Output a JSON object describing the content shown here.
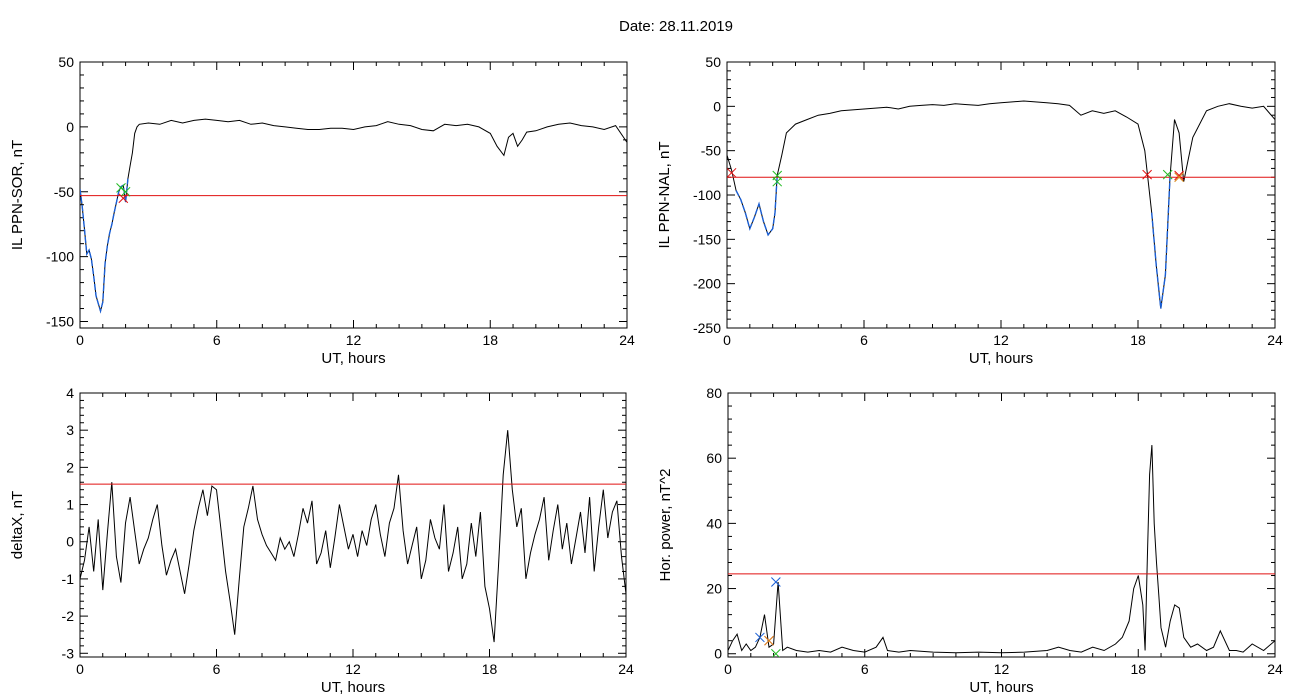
{
  "header": {
    "date_label": "Date:  28.11.2019"
  },
  "colors": {
    "trace": "#000000",
    "threshold": "#e01010",
    "storm": "#1a5fd6",
    "mark_red": "#e01010",
    "mark_green": "#22bb22",
    "mark_blue": "#1a5fd6",
    "mark_orange": "#d98a1a"
  },
  "chart_data": [
    {
      "type": "line",
      "ylabel": "IL PPN-SOR, nT",
      "xlabel": "UT, hours",
      "xlim": [
        0,
        24
      ],
      "ylim": [
        -155,
        50
      ],
      "xticks": [
        0,
        6,
        12,
        18,
        24
      ],
      "yticks": [
        -150,
        -100,
        -50,
        0,
        50
      ],
      "threshold": -53,
      "x": [
        0,
        0.1,
        0.2,
        0.3,
        0.4,
        0.5,
        0.6,
        0.7,
        0.8,
        0.9,
        1.0,
        1.1,
        1.2,
        1.3,
        1.4,
        1.5,
        1.6,
        1.7,
        1.8,
        1.9,
        2.0,
        2.1,
        2.2,
        2.3,
        2.4,
        2.5,
        2.6,
        3,
        3.5,
        4,
        4.5,
        5,
        5.5,
        6,
        6.5,
        7,
        7.5,
        8,
        8.5,
        9,
        9.5,
        10,
        10.5,
        11,
        11.5,
        12,
        12.5,
        13,
        13.5,
        14,
        14.5,
        15,
        15.5,
        16,
        16.5,
        17,
        17.5,
        18,
        18.3,
        18.6,
        18.8,
        19.0,
        19.2,
        19.4,
        19.6,
        20,
        20.5,
        21,
        21.5,
        22,
        22.5,
        23,
        23.5,
        24
      ],
      "y": [
        -48,
        -62,
        -80,
        -98,
        -95,
        -102,
        -115,
        -130,
        -136,
        -142,
        -135,
        -105,
        -92,
        -82,
        -75,
        -66,
        -58,
        -50,
        -46,
        -45,
        -58,
        -40,
        -30,
        -20,
        -5,
        0,
        2,
        3,
        2,
        5,
        3,
        5,
        6,
        5,
        4,
        5,
        2,
        3,
        1,
        0,
        -1,
        -2,
        -2,
        -1,
        -1,
        -2,
        0,
        1,
        4,
        2,
        1,
        -2,
        -3,
        2,
        1,
        2,
        0,
        -5,
        -15,
        -22,
        -8,
        -5,
        -15,
        -10,
        -4,
        -3,
        0,
        2,
        3,
        1,
        0,
        -2,
        1,
        -12
      ],
      "storm_range": [
        0,
        2.1
      ],
      "markers": [
        {
          "x": 1.8,
          "y": -47,
          "color": "mark_green"
        },
        {
          "x": 2.0,
          "y": -50,
          "color": "mark_green"
        },
        {
          "x": 1.9,
          "y": -55,
          "color": "mark_red"
        }
      ]
    },
    {
      "type": "line",
      "ylabel": "IL PPN-NAL, nT",
      "xlabel": "UT, hours",
      "xlim": [
        0,
        24
      ],
      "ylim": [
        -250,
        50
      ],
      "xticks": [
        0,
        6,
        12,
        18,
        24
      ],
      "yticks": [
        -250,
        -200,
        -150,
        -100,
        -50,
        0,
        50
      ],
      "threshold": -80,
      "x": [
        0,
        0.2,
        0.4,
        0.6,
        0.8,
        1.0,
        1.2,
        1.4,
        1.6,
        1.8,
        2.0,
        2.1,
        2.2,
        2.4,
        2.6,
        3,
        3.5,
        4,
        4.5,
        5,
        5.5,
        6,
        6.5,
        7,
        7.5,
        8,
        8.5,
        9,
        9.5,
        10,
        10.5,
        11,
        11.5,
        12,
        12.5,
        13,
        13.5,
        14,
        14.5,
        15,
        15.5,
        16,
        16.5,
        17,
        17.5,
        18,
        18.3,
        18.6,
        18.8,
        19.0,
        19.2,
        19.4,
        19.6,
        19.8,
        20.0,
        20.2,
        20.4,
        20.6,
        21,
        21.5,
        22,
        22.5,
        23,
        23.5,
        24
      ],
      "y": [
        -55,
        -72,
        -95,
        -105,
        -120,
        -138,
        -125,
        -110,
        -130,
        -145,
        -138,
        -120,
        -78,
        -55,
        -30,
        -20,
        -15,
        -10,
        -8,
        -5,
        -4,
        -3,
        -2,
        -1,
        -3,
        0,
        1,
        2,
        1,
        3,
        2,
        1,
        3,
        4,
        5,
        6,
        5,
        4,
        3,
        1,
        -10,
        -5,
        -8,
        -5,
        -12,
        -20,
        -50,
        -120,
        -180,
        -228,
        -190,
        -80,
        -15,
        -30,
        -85,
        -60,
        -35,
        -25,
        -5,
        0,
        3,
        0,
        -2,
        0,
        -15
      ],
      "storm_range": [
        0.4,
        2.2
      ],
      "storm_range_2": [
        18.6,
        19.4
      ],
      "markers": [
        {
          "x": 0.2,
          "y": -75,
          "color": "mark_red"
        },
        {
          "x": 2.2,
          "y": -78,
          "color": "mark_green"
        },
        {
          "x": 2.2,
          "y": -85,
          "color": "mark_green"
        },
        {
          "x": 18.4,
          "y": -77,
          "color": "mark_red"
        },
        {
          "x": 19.3,
          "y": -77,
          "color": "mark_green"
        },
        {
          "x": 19.8,
          "y": -78,
          "color": "mark_red"
        },
        {
          "x": 19.8,
          "y": -80,
          "color": "mark_orange"
        }
      ]
    },
    {
      "type": "line",
      "ylabel": "deltaX, nT",
      "xlabel": "UT, hours",
      "xlim": [
        0,
        24
      ],
      "ylim": [
        -3.1,
        4
      ],
      "xticks": [
        0,
        6,
        12,
        18,
        24
      ],
      "yticks": [
        -3,
        -2,
        -1,
        0,
        1,
        2,
        3,
        4
      ],
      "threshold": 1.55,
      "x": [
        0,
        0.2,
        0.4,
        0.6,
        0.8,
        1.0,
        1.2,
        1.4,
        1.6,
        1.8,
        2.0,
        2.2,
        2.4,
        2.6,
        2.8,
        3.0,
        3.2,
        3.4,
        3.6,
        3.8,
        4.0,
        4.2,
        4.4,
        4.6,
        4.8,
        5.0,
        5.2,
        5.4,
        5.6,
        5.8,
        6.0,
        6.2,
        6.4,
        6.6,
        6.8,
        7.0,
        7.2,
        7.4,
        7.6,
        7.8,
        8.0,
        8.2,
        8.4,
        8.6,
        8.8,
        9.0,
        9.2,
        9.4,
        9.6,
        9.8,
        10.0,
        10.2,
        10.4,
        10.6,
        10.8,
        11.0,
        11.2,
        11.4,
        11.6,
        11.8,
        12.0,
        12.2,
        12.4,
        12.6,
        12.8,
        13.0,
        13.2,
        13.4,
        13.6,
        13.8,
        14.0,
        14.2,
        14.4,
        14.6,
        14.8,
        15.0,
        15.2,
        15.4,
        15.6,
        15.8,
        16.0,
        16.2,
        16.4,
        16.6,
        16.8,
        17.0,
        17.2,
        17.4,
        17.6,
        17.8,
        18.0,
        18.2,
        18.4,
        18.6,
        18.8,
        19.0,
        19.2,
        19.4,
        19.6,
        19.8,
        20.0,
        20.2,
        20.4,
        20.6,
        20.8,
        21.0,
        21.2,
        21.4,
        21.6,
        21.8,
        22.0,
        22.2,
        22.4,
        22.6,
        22.8,
        23.0,
        23.2,
        23.4,
        23.6,
        23.8,
        24.0
      ],
      "y": [
        -1.0,
        -0.5,
        0.4,
        -0.8,
        0.6,
        -1.3,
        0.2,
        1.6,
        -0.4,
        -1.1,
        0.5,
        1.2,
        0.3,
        -0.6,
        -0.2,
        0.1,
        0.6,
        1.0,
        -0.1,
        -0.9,
        -0.5,
        -0.2,
        -0.8,
        -1.4,
        -0.6,
        0.3,
        0.9,
        1.4,
        0.7,
        1.5,
        1.4,
        0.3,
        -0.8,
        -1.6,
        -2.5,
        -1.0,
        0.4,
        0.9,
        1.5,
        0.6,
        0.2,
        -0.1,
        -0.3,
        -0.5,
        0.1,
        -0.2,
        0.0,
        -0.4,
        0.2,
        0.9,
        0.5,
        1.1,
        -0.6,
        -0.3,
        0.3,
        -0.7,
        0.1,
        1.0,
        0.4,
        -0.2,
        0.2,
        -0.4,
        0.3,
        -0.1,
        0.6,
        1.0,
        0.2,
        -0.4,
        0.5,
        0.9,
        1.8,
        0.3,
        -0.6,
        -0.1,
        0.4,
        -1.0,
        -0.5,
        0.6,
        0.1,
        -0.2,
        1.0,
        -0.8,
        -0.3,
        0.4,
        -1.0,
        -0.6,
        0.5,
        -0.4,
        0.8,
        -1.2,
        -1.8,
        -2.7,
        -0.6,
        1.8,
        3.0,
        1.4,
        0.4,
        0.9,
        -1.0,
        -0.3,
        0.2,
        0.6,
        1.2,
        -0.5,
        0.3,
        1.0,
        -0.2,
        0.5,
        -0.6,
        0.1,
        0.8,
        -0.3,
        1.2,
        -0.8,
        0.4,
        1.4,
        0.1,
        0.8,
        1.1,
        -0.4,
        -1.4
      ],
      "markers": []
    },
    {
      "type": "line",
      "ylabel": "Hor. power, nT^2",
      "xlabel": "UT, hours",
      "xlim": [
        0,
        24
      ],
      "ylim": [
        -1,
        80
      ],
      "xticks": [
        0,
        6,
        12,
        18,
        24
      ],
      "yticks": [
        0,
        20,
        40,
        60,
        80
      ],
      "threshold": 24.5,
      "x": [
        0,
        0.2,
        0.4,
        0.6,
        0.8,
        1.0,
        1.2,
        1.4,
        1.6,
        1.8,
        2.0,
        2.2,
        2.4,
        2.6,
        3,
        3.5,
        4,
        4.5,
        5,
        5.5,
        6,
        6.5,
        6.8,
        7,
        7.5,
        8,
        9,
        10,
        11,
        12,
        13,
        14,
        14.5,
        15,
        15.5,
        16,
        16.5,
        17,
        17.3,
        17.6,
        17.8,
        18.0,
        18.2,
        18.3,
        18.4,
        18.5,
        18.6,
        18.7,
        18.8,
        18.9,
        19.0,
        19.1,
        19.2,
        19.4,
        19.6,
        19.8,
        20.0,
        20.3,
        20.6,
        21,
        21.3,
        21.6,
        22,
        22.3,
        22.6,
        23,
        23.5,
        24
      ],
      "y": [
        1,
        4,
        6,
        1,
        3,
        1,
        2,
        5,
        12,
        2,
        3,
        22,
        1,
        2,
        1,
        0.5,
        1,
        0.5,
        2,
        1,
        0.5,
        2,
        5,
        1,
        0.5,
        1,
        0.5,
        0.3,
        0.5,
        0.3,
        0.5,
        1,
        2,
        1,
        0.5,
        2,
        1,
        3,
        5,
        10,
        20,
        24,
        15,
        1,
        30,
        55,
        64,
        40,
        28,
        18,
        8,
        5,
        2,
        10,
        15,
        14,
        5,
        2,
        3,
        1,
        2,
        7,
        1,
        1,
        0.5,
        3,
        1,
        4
      ],
      "markers": [
        {
          "x": 1.4,
          "y": 5,
          "color": "mark_blue"
        },
        {
          "x": 1.8,
          "y": 4,
          "color": "mark_red"
        },
        {
          "x": 1.8,
          "y": 4,
          "color": "mark_orange"
        },
        {
          "x": 2.1,
          "y": 22,
          "color": "mark_blue"
        },
        {
          "x": 2.1,
          "y": 0,
          "color": "mark_green"
        }
      ]
    }
  ]
}
